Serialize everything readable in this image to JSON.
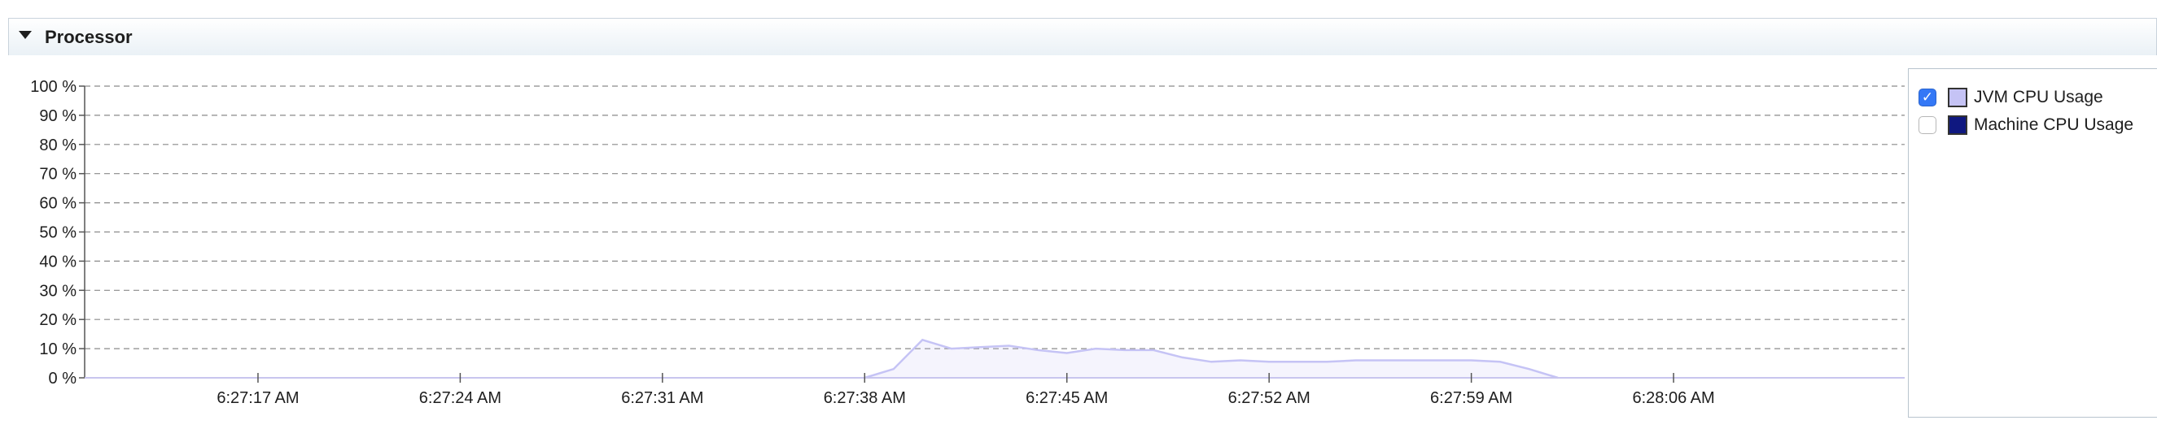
{
  "panel": {
    "title": "Processor",
    "toggle_icon": "triangle-down-icon"
  },
  "chart_data": {
    "type": "area",
    "title": "",
    "xlabel": "",
    "ylabel": "",
    "y_ticks": [
      "0 %",
      "10 %",
      "20 %",
      "30 %",
      "40 %",
      "50 %",
      "60 %",
      "70 %",
      "80 %",
      "90 %",
      "100 %"
    ],
    "ylim": [
      0,
      100
    ],
    "x_ticks": [
      "6:27:17 AM",
      "6:27:24 AM",
      "6:27:31 AM",
      "6:27:38 AM",
      "6:27:45 AM",
      "6:27:52 AM",
      "6:27:59 AM",
      "6:28:06 AM"
    ],
    "x_tick_seconds": [
      1037,
      1044,
      1051,
      1058,
      1065,
      1072,
      1079,
      1086
    ],
    "xlim_seconds": [
      1031,
      1094
    ],
    "grid": true,
    "series": [
      {
        "name": "JVM CPU Usage",
        "color": "#c5c3f5",
        "visible": true,
        "points": [
          [
            1058,
            0
          ],
          [
            1059,
            3
          ],
          [
            1060,
            13
          ],
          [
            1061,
            10
          ],
          [
            1062,
            10.5
          ],
          [
            1063,
            11
          ],
          [
            1064,
            9.5
          ],
          [
            1065,
            8.5
          ],
          [
            1066,
            10
          ],
          [
            1067,
            9.5
          ],
          [
            1068,
            9.5
          ],
          [
            1069,
            7
          ],
          [
            1070,
            5.5
          ],
          [
            1071,
            6
          ],
          [
            1072,
            5.5
          ],
          [
            1073,
            5.5
          ],
          [
            1074,
            5.5
          ],
          [
            1075,
            6
          ],
          [
            1076,
            6
          ],
          [
            1077,
            6
          ],
          [
            1078,
            6
          ],
          [
            1079,
            6
          ],
          [
            1080,
            5.5
          ],
          [
            1081,
            3
          ],
          [
            1082,
            0
          ]
        ]
      },
      {
        "name": "Machine CPU Usage",
        "color": "#0f1880",
        "visible": false,
        "points": []
      }
    ],
    "legend_position": "right"
  }
}
